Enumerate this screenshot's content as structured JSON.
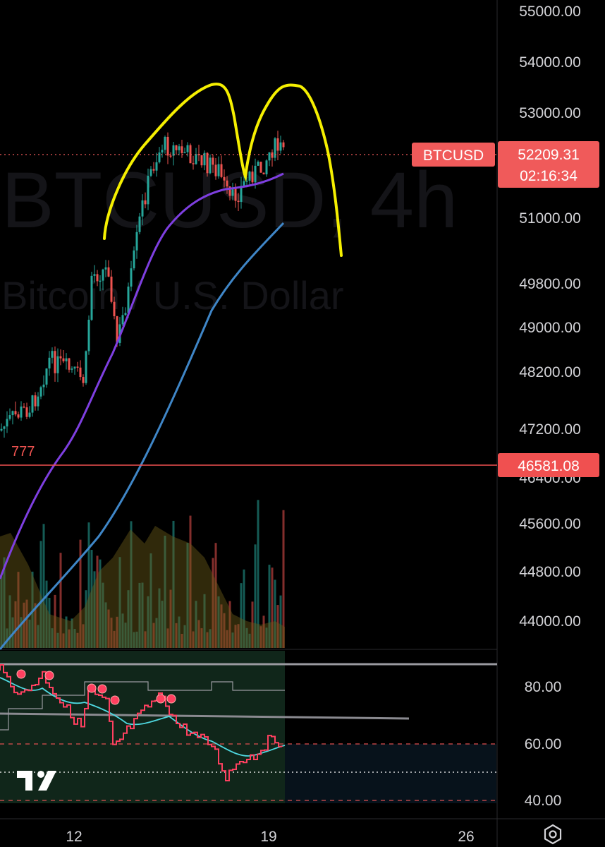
{
  "watermark": {
    "symbol_line": "BTCUSD, 4h",
    "name_line": "Bitcoin / U.S. Dollar"
  },
  "colors": {
    "up": "#26a69a",
    "down": "#ef5350",
    "ma_fast": "#7e3fe0",
    "ma_slow": "#3f86c7",
    "annotation": "#ffff00",
    "price_tag": "#f05a5a",
    "rsi_line": "#ff4060",
    "rsi_signal": "#4fd8e0"
  },
  "chart_data": [
    {
      "type": "candlestick",
      "title": "",
      "symbol_tag": "BTCUSD",
      "last_price": "52209.31",
      "countdown": "02:16:34",
      "marked_level": "46581.08",
      "marked_level_value": 46581.08,
      "low_marker": "777",
      "x_ticks": [
        "12",
        "19",
        "26"
      ],
      "y_ticks": [
        "55000.00",
        "54000.00",
        "53000.00",
        "51000.00",
        "49800.00",
        "49000.00",
        "48200.00",
        "47200.00",
        "46400.00",
        "45600.00",
        "44800.00",
        "44000.00"
      ],
      "trend_shape": "double top (M) drawn in yellow",
      "series": [
        {
          "kind": "moving_average",
          "color": "#7e3fe0"
        },
        {
          "kind": "moving_average",
          "color": "#3f86c7"
        },
        {
          "kind": "volume",
          "style": "histogram with smoothed area"
        }
      ]
    },
    {
      "type": "line",
      "panel": "oscillator",
      "y_ticks": [
        "80.00",
        "60.00",
        "40.00"
      ],
      "levels": [
        60,
        50,
        40
      ],
      "last_value": 59
    }
  ],
  "bottom_bar": {
    "settings_icon": "hexagon-settings-icon",
    "logo": "tradingview-logo"
  }
}
